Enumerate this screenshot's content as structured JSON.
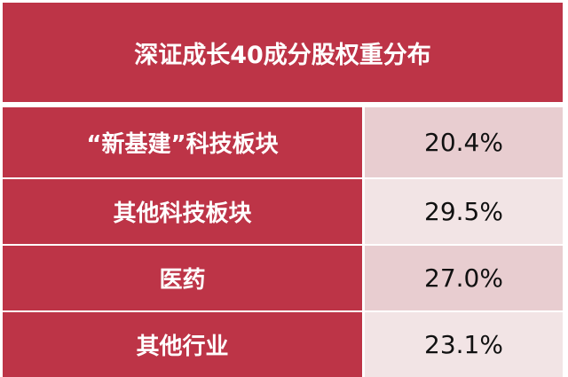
{
  "title": "深证成长40成分股权重分布",
  "rows": [
    {
      "label": "“新基建”科技板块",
      "value": "20.4%"
    },
    {
      "label": "其他科技板块",
      "value": "29.5%"
    },
    {
      "label": "医药",
      "value": "27.0%"
    },
    {
      "label": "其他行业",
      "value": "23.1%"
    }
  ],
  "colors": {
    "header": "#bd3447",
    "cell_dark": "#e8cdd0",
    "cell_light": "#f2e4e5"
  }
}
